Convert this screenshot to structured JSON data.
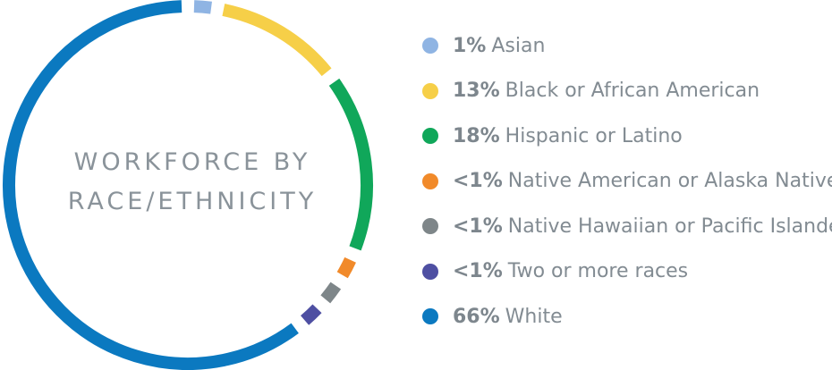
{
  "chart_data": {
    "type": "pie",
    "title_lines": [
      "WORKFORCE BY",
      "RACE/ETHNICITY"
    ],
    "slices": [
      {
        "pct_label": "1%",
        "label": "Asian",
        "value": 1,
        "color": "#8fb4e3"
      },
      {
        "pct_label": "13%",
        "label": "Black or African American",
        "value": 13,
        "color": "#f6cf48"
      },
      {
        "pct_label": "18%",
        "label": "Hispanic or Latino",
        "value": 18,
        "color": "#10a75a"
      },
      {
        "pct_label": "<1%",
        "label": "Native American or Alaska Native",
        "value": 0.5,
        "color": "#f18a2a"
      },
      {
        "pct_label": "<1%",
        "label": "Native Hawaiian or Pacific Islander",
        "value": 0.5,
        "color": "#7e8689"
      },
      {
        "pct_label": "<1%",
        "label": "Two or more races",
        "value": 0.5,
        "color": "#4e4fa2"
      },
      {
        "pct_label": "66%",
        "label": "White",
        "value": 66,
        "color": "#0b79c0"
      }
    ],
    "legend_position": "right"
  }
}
